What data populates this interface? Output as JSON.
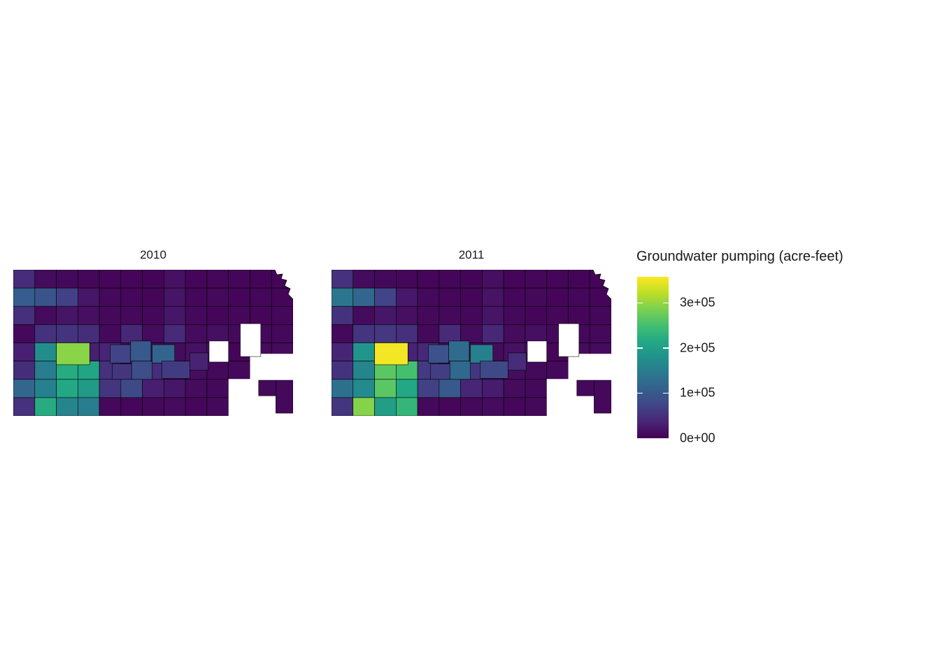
{
  "page": {
    "background": "#ffffff"
  },
  "figure": {
    "panels": [
      {
        "title": "2010"
      },
      {
        "title": "2011"
      }
    ],
    "legend": {
      "title": "Groundwater pumping (acre-feet)",
      "tick_labels": [
        "3e+05",
        "2e+05",
        "1e+05",
        "0e+00"
      ],
      "tick_values": [
        300000,
        200000,
        100000,
        0
      ],
      "dash_values": [
        300000,
        200000,
        100000
      ],
      "colormap": "viridis"
    }
  },
  "chart_data": {
    "type": "heatmap",
    "subtype": "choropleth_map",
    "region": "Kansas counties",
    "title": "",
    "legend_title": "Groundwater pumping (acre-feet)",
    "unit": "acre-feet",
    "years": [
      "2010",
      "2011"
    ],
    "value_domain": [
      0,
      358000
    ],
    "border_color": "#000000",
    "missing_color": "#ffffff",
    "viridis_stops": [
      [
        0.0,
        "#440154"
      ],
      [
        0.1,
        "#482475"
      ],
      [
        0.2,
        "#414487"
      ],
      [
        0.3,
        "#355f8d"
      ],
      [
        0.4,
        "#2a788e"
      ],
      [
        0.5,
        "#21918c"
      ],
      [
        0.6,
        "#22a884"
      ],
      [
        0.7,
        "#44bf70"
      ],
      [
        0.8,
        "#7ad151"
      ],
      [
        0.9,
        "#bddf26"
      ],
      [
        1.0,
        "#fde725"
      ]
    ],
    "grid": {
      "cols": 13,
      "rows": 8,
      "values_2010": [
        [
          45000,
          10000,
          8000,
          6000,
          5000,
          5000,
          4000,
          16000,
          5000,
          6000,
          5000,
          4000,
          5000
        ],
        [
          105000,
          92000,
          68000,
          22000,
          8000,
          6000,
          5000,
          20000,
          6000,
          8000,
          5000,
          6000,
          5000
        ],
        [
          48000,
          10000,
          20000,
          14000,
          8000,
          8000,
          6000,
          22000,
          8000,
          5000,
          6000,
          5000,
          6000
        ],
        [
          8000,
          52000,
          54000,
          46000,
          8000,
          40000,
          10000,
          42000,
          10000,
          14000,
          8000,
          8000,
          8000
        ],
        [
          32000,
          175000,
          30000,
          30000,
          36000,
          10000,
          10000,
          10000,
          16000,
          16000,
          5000,
          10000,
          10000
        ],
        [
          46000,
          150000,
          220000,
          210000,
          50000,
          12000,
          45000,
          10000,
          12000,
          8000,
          8000,
          5000,
          5000
        ],
        [
          118000,
          155000,
          215000,
          195000,
          55000,
          80000,
          30000,
          22000,
          10000,
          8000,
          5000,
          5000,
          5000
        ],
        [
          50000,
          220000,
          160000,
          150000,
          8000,
          6000,
          8000,
          10000,
          6000,
          8000,
          5000,
          5000,
          5000
        ]
      ],
      "values_2011": [
        [
          50000,
          10000,
          8000,
          6000,
          5000,
          5000,
          4000,
          14000,
          5000,
          6000,
          5000,
          4000,
          5000
        ],
        [
          140000,
          118000,
          72000,
          24000,
          8000,
          6000,
          5000,
          18000,
          6000,
          8000,
          5000,
          6000,
          5000
        ],
        [
          52000,
          10000,
          22000,
          14000,
          8000,
          8000,
          6000,
          20000,
          8000,
          5000,
          6000,
          5000,
          6000
        ],
        [
          8000,
          55000,
          58000,
          48000,
          8000,
          42000,
          10000,
          40000,
          10000,
          14000,
          8000,
          8000,
          8000
        ],
        [
          36000,
          185000,
          35000,
          35000,
          40000,
          10000,
          10000,
          10000,
          16000,
          16000,
          5000,
          10000,
          10000
        ],
        [
          52000,
          162000,
          265000,
          250000,
          60000,
          12000,
          55000,
          10000,
          12000,
          8000,
          8000,
          5000,
          5000
        ],
        [
          132000,
          170000,
          265000,
          215000,
          68000,
          100000,
          38000,
          28000,
          10000,
          8000,
          5000,
          5000,
          5000
        ],
        [
          55000,
          292000,
          200000,
          235000,
          8000,
          6000,
          8000,
          10000,
          6000,
          8000,
          5000,
          5000,
          5000
        ]
      ]
    },
    "overlay_counties": [
      {
        "x": 2.0,
        "y": 4.0,
        "w": 1.55,
        "h": 1.2,
        "v2010": 295000,
        "v2011": 352000
      },
      {
        "x": 4.5,
        "y": 4.1,
        "w": 0.95,
        "h": 1.0,
        "v2010": 72000,
        "v2011": 90000
      },
      {
        "x": 5.45,
        "y": 3.9,
        "w": 0.95,
        "h": 1.1,
        "v2010": 100000,
        "v2011": 125000
      },
      {
        "x": 6.45,
        "y": 4.1,
        "w": 1.05,
        "h": 1.0,
        "v2010": 115000,
        "v2011": 155000
      },
      {
        "x": 4.6,
        "y": 5.15,
        "w": 0.9,
        "h": 0.85,
        "v2010": 55000,
        "v2011": 65000
      },
      {
        "x": 5.5,
        "y": 5.0,
        "w": 0.95,
        "h": 1.0,
        "v2010": 85000,
        "v2011": 120000
      },
      {
        "x": 6.9,
        "y": 5.0,
        "w": 1.3,
        "h": 0.95,
        "v2010": 62000,
        "v2011": 78000
      },
      {
        "x": 8.2,
        "y": 4.55,
        "w": 0.85,
        "h": 0.95,
        "v2010": 35000,
        "v2011": 45000
      },
      {
        "x": 11.4,
        "y": 6.05,
        "w": 0.8,
        "h": 0.85,
        "v2010": 8000,
        "v2011": 8000
      },
      {
        "x": 12.2,
        "y": 6.05,
        "w": 0.8,
        "h": 1.8,
        "v2010": 8000,
        "v2011": 8000
      }
    ],
    "missing_interior": [
      {
        "x": 10.55,
        "y": 2.95,
        "w": 0.95,
        "h": 1.8
      },
      {
        "x": 9.1,
        "y": 3.9,
        "w": 0.9,
        "h": 1.15
      }
    ],
    "missing_edge": [
      {
        "x": 11.0,
        "y": 4.6,
        "w": 2.05,
        "h": 1.42
      },
      {
        "x": 10.0,
        "y": 5.98,
        "w": 3.05,
        "h": 2.1
      }
    ],
    "ne_corner": {
      "white_polygon": [
        [
          374,
          0
        ],
        [
          377,
          7
        ],
        [
          385,
          6
        ],
        [
          383,
          13
        ],
        [
          391,
          15
        ],
        [
          388,
          23
        ],
        [
          396,
          27
        ],
        [
          393,
          35
        ],
        [
          400,
          42
        ],
        [
          400,
          0
        ]
      ],
      "river_line": [
        [
          374,
          0
        ],
        [
          377,
          7
        ],
        [
          385,
          6
        ],
        [
          383,
          13
        ],
        [
          391,
          15
        ],
        [
          388,
          23
        ],
        [
          396,
          27
        ],
        [
          393,
          35
        ],
        [
          400,
          42
        ]
      ]
    }
  }
}
